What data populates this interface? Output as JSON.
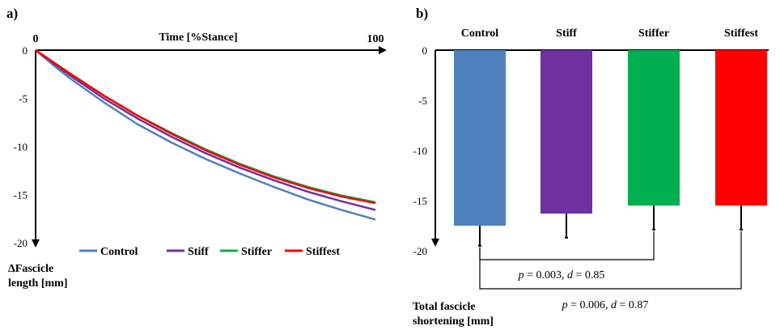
{
  "chart_data": [
    {
      "panel_label": "a)",
      "type": "line",
      "xlabel": "Time [%Stance]",
      "ylabel_lines": [
        "ΔFascicle",
        "length [mm]"
      ],
      "xlim": [
        0,
        100
      ],
      "ylim": [
        -20,
        0
      ],
      "x_ticks": [
        0,
        100
      ],
      "x_tick_labels": [
        "0",
        "100"
      ],
      "y_ticks": [
        0,
        -5,
        -10,
        -15,
        -20
      ],
      "y_tick_labels": [
        "0",
        "-5",
        "-10",
        "-15",
        "-20"
      ],
      "x": [
        0,
        5,
        10,
        20,
        30,
        40,
        50,
        60,
        70,
        80,
        90,
        100
      ],
      "series": [
        {
          "name": "Control",
          "color": "#4f81bd",
          "values": [
            0,
            -1.5,
            -2.9,
            -5.4,
            -7.7,
            -9.6,
            -11.3,
            -12.8,
            -14.2,
            -15.5,
            -16.6,
            -17.6
          ]
        },
        {
          "name": "Stiff",
          "color": "#7030a0",
          "values": [
            0,
            -1.3,
            -2.6,
            -5.0,
            -7.1,
            -9.0,
            -10.7,
            -12.2,
            -13.5,
            -14.7,
            -15.7,
            -16.6
          ]
        },
        {
          "name": "Stiffer",
          "color": "#00b050",
          "values": [
            0,
            -1.2,
            -2.4,
            -4.7,
            -6.8,
            -8.6,
            -10.3,
            -11.8,
            -13.1,
            -14.2,
            -15.1,
            -15.8
          ]
        },
        {
          "name": "Stiffest",
          "color": "#ff0000",
          "values": [
            0,
            -1.2,
            -2.4,
            -4.7,
            -6.8,
            -8.7,
            -10.4,
            -11.9,
            -13.2,
            -14.3,
            -15.2,
            -15.9
          ]
        }
      ],
      "legend": "bottom"
    },
    {
      "panel_label": "b)",
      "type": "bar",
      "categories": [
        "Control",
        "Stiff",
        "Stiffer",
        "Stiffest"
      ],
      "values": [
        -17.5,
        -16.3,
        -15.5,
        -15.5
      ],
      "errors": [
        2.0,
        2.4,
        2.4,
        2.4
      ],
      "colors": [
        "#4f81bd",
        "#7030a0",
        "#00b050",
        "#ff0000"
      ],
      "ylabel_lines": [
        "Total fascicle",
        "shortening [mm]"
      ],
      "ylim": [
        -20,
        0
      ],
      "y_ticks": [
        0,
        -5,
        -10,
        -15,
        -20
      ],
      "y_tick_labels": [
        "0",
        "-5",
        "-10",
        "-15",
        "-20"
      ],
      "annotations": [
        {
          "between": [
            "Control",
            "Stiffer"
          ],
          "p": "p",
          "p_text": " = 0.003, ",
          "d": "d",
          "d_text": " = 0.85"
        },
        {
          "between": [
            "Control",
            "Stiffest"
          ],
          "p": "p",
          "p_text": " = 0.006, ",
          "d": "d",
          "d_text": " = 0.87"
        }
      ]
    }
  ]
}
